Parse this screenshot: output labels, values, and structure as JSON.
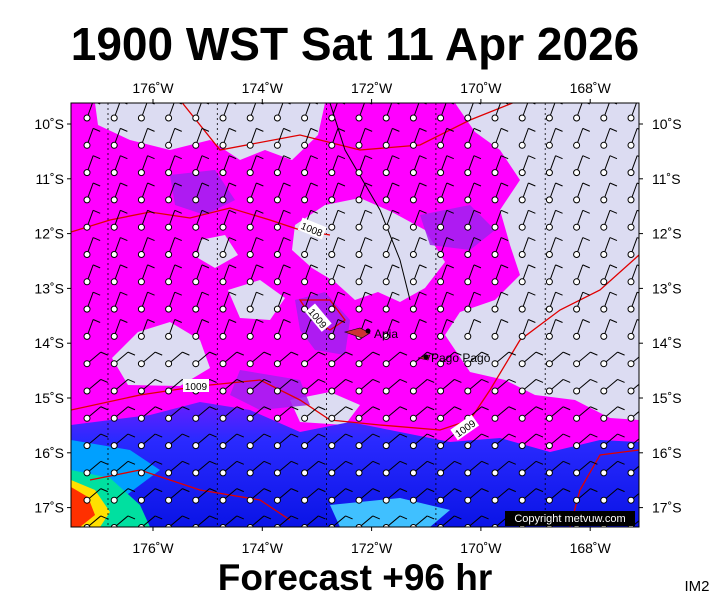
{
  "title": "1900 WST Sat 11 Apr 2026",
  "map": {
    "lon_labels": [
      "176˚W",
      "174˚W",
      "172˚W",
      "170˚W",
      "168˚W"
    ],
    "lat_labels": [
      "10˚S",
      "11˚S",
      "12˚S",
      "13˚S",
      "14˚S",
      "15˚S",
      "16˚S",
      "17˚S"
    ],
    "isobar_labels": [
      "1008",
      "1009",
      "1009",
      "1009"
    ],
    "places": [
      "Apia",
      "Pago Pago"
    ],
    "copyright": "Copyright metvuw.com"
  },
  "footer": "Forecast +96 hr",
  "image_id": "IM2"
}
